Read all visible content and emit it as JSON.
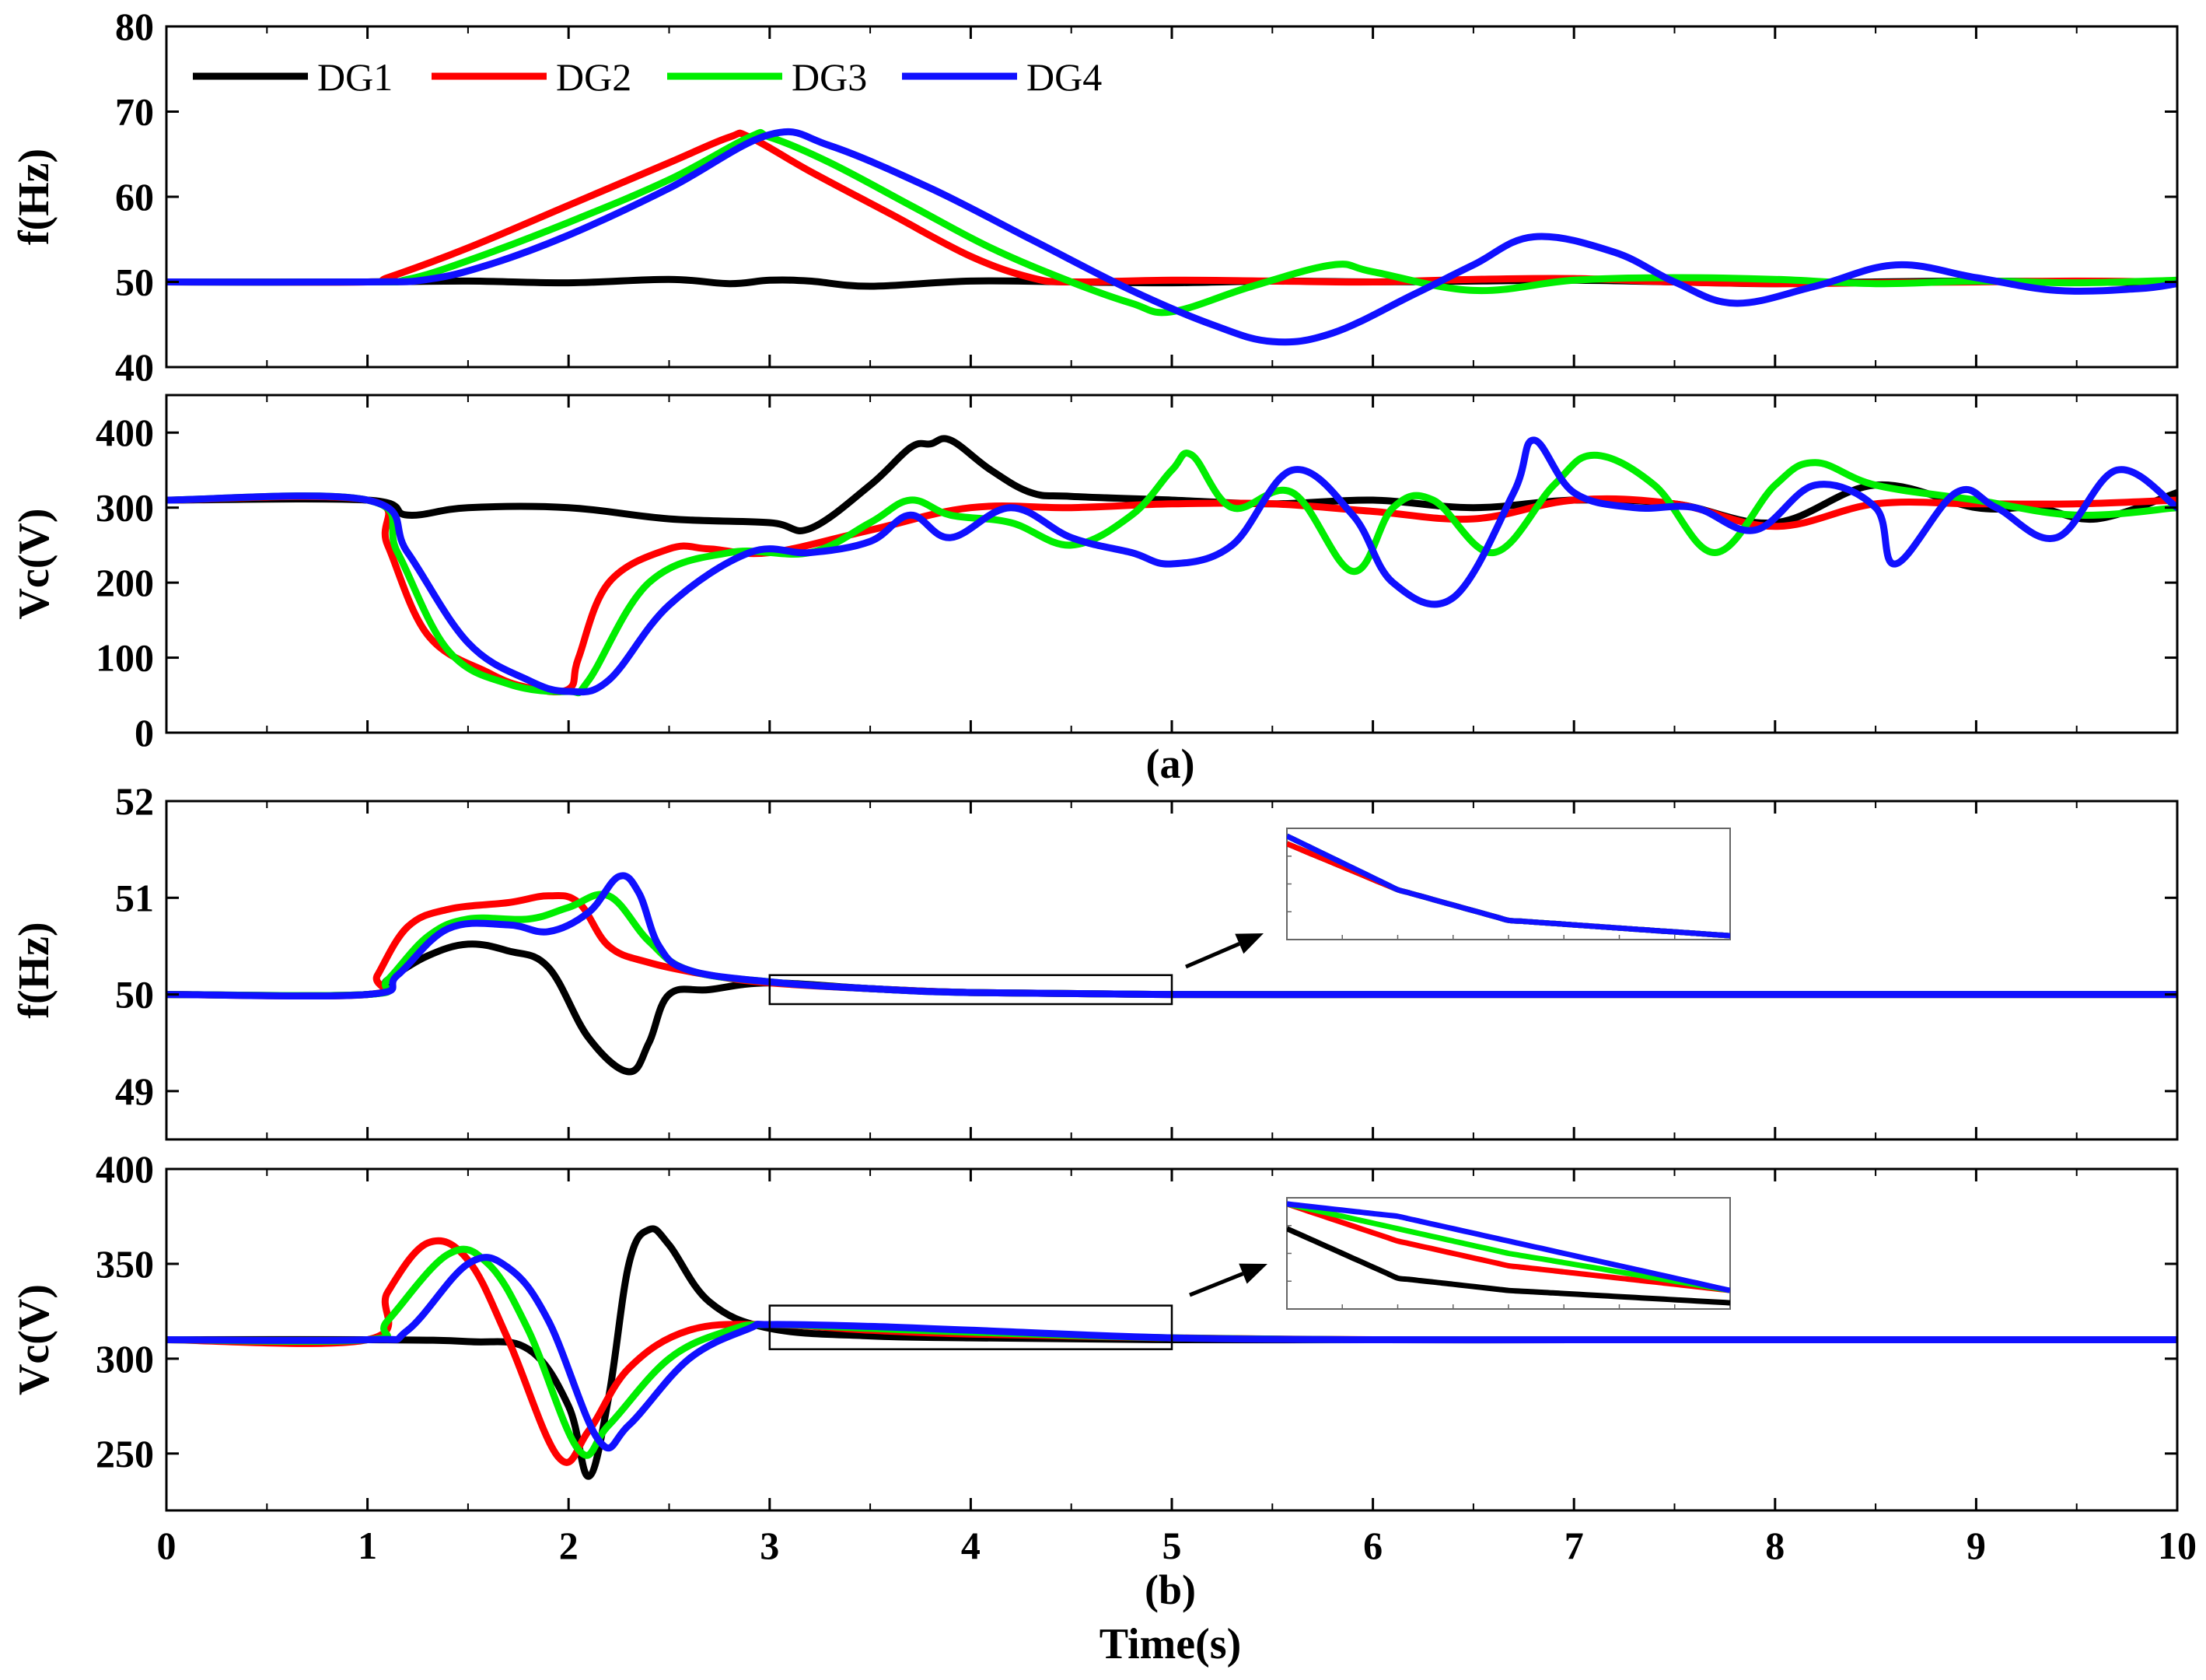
{
  "figure": {
    "xlabel": "Time(s)",
    "caption_a": "(a)",
    "caption_b": "(b)",
    "colors": {
      "DG1": "#000000",
      "DG2": "#ff0000",
      "DG3": "#00ee00",
      "DG4": "#1010ff"
    },
    "legend": [
      "DG1",
      "DG2",
      "DG3",
      "DG4"
    ]
  },
  "chart_data": [
    {
      "id": "a-freq",
      "type": "line",
      "title": "",
      "xlabel": "",
      "ylabel": "f(Hz)",
      "xlim": [
        0,
        10
      ],
      "ylim": [
        40,
        80
      ],
      "yticks": [
        40,
        50,
        60,
        70,
        80
      ],
      "xticks": [
        0,
        1,
        2,
        3,
        4,
        5,
        6,
        7,
        8,
        9,
        10
      ],
      "show_xtick_labels": false,
      "legend_position": "top-left",
      "series": [
        {
          "name": "DG1",
          "x": [
            0,
            1,
            1.5,
            2,
            2.5,
            2.8,
            3,
            3.2,
            3.5,
            4,
            4.5,
            5,
            5.5,
            6,
            6.5,
            7,
            7.5,
            8,
            8.5,
            9,
            9.5,
            10
          ],
          "values": [
            50,
            50,
            50.1,
            49.9,
            50.3,
            49.8,
            50.2,
            50.1,
            49.5,
            50.1,
            50.0,
            49.9,
            50.1,
            50.0,
            50.1,
            50.2,
            50.0,
            49.8,
            50.0,
            50.1,
            50.0,
            49.9
          ]
        },
        {
          "name": "DG2",
          "x": [
            0,
            1,
            1.1,
            1.5,
            2,
            2.5,
            2.8,
            2.9,
            3.2,
            3.6,
            4,
            4.3,
            4.5,
            5,
            5.5,
            6,
            6.5,
            7,
            7.5,
            8,
            8.5,
            9,
            9.5,
            10
          ],
          "values": [
            50,
            50,
            50.5,
            54,
            59,
            64,
            67,
            67,
            63,
            58,
            53,
            50.5,
            50,
            50.2,
            50.1,
            50.0,
            50.3,
            50.4,
            50.0,
            49.8,
            49.9,
            50.0,
            50.1,
            50.0
          ]
        },
        {
          "name": "DG3",
          "x": [
            0,
            1,
            1.2,
            1.5,
            2,
            2.5,
            2.9,
            3.0,
            3.3,
            3.7,
            4.1,
            4.5,
            4.8,
            5.0,
            5.4,
            5.8,
            6.0,
            6.5,
            7,
            7.5,
            8,
            8.5,
            9,
            9.5,
            10
          ],
          "values": [
            50,
            50,
            50.3,
            52.5,
            57,
            62,
            67,
            67,
            64,
            59,
            54,
            50,
            47.5,
            46.5,
            49.5,
            52,
            51.2,
            49,
            50.2,
            50.5,
            50.3,
            49.8,
            50.1,
            49.9,
            50.2
          ]
        },
        {
          "name": "DG4",
          "x": [
            0,
            1,
            1.3,
            1.6,
            2,
            2.5,
            3.0,
            3.3,
            3.8,
            4.3,
            4.8,
            5.2,
            5.5,
            5.8,
            6.2,
            6.5,
            6.8,
            7.2,
            7.5,
            7.8,
            8.2,
            8.6,
            9.0,
            9.4,
            9.8,
            10
          ],
          "values": [
            50,
            50,
            50.3,
            52,
            55.5,
            61,
            67.3,
            66,
            61,
            55,
            49,
            45,
            43,
            44,
            48.5,
            52,
            55.3,
            53.5,
            50,
            47.5,
            49.5,
            52,
            50.5,
            49,
            49.2,
            49.8
          ]
        }
      ]
    },
    {
      "id": "a-volt",
      "type": "line",
      "title": "",
      "xlabel": "",
      "ylabel": "Vc(V)",
      "xlim": [
        0,
        10
      ],
      "ylim": [
        0,
        450
      ],
      "yticks": [
        0,
        100,
        200,
        300,
        400
      ],
      "xticks": [
        0,
        1,
        2,
        3,
        4,
        5,
        6,
        7,
        8,
        9,
        10
      ],
      "show_xtick_labels": false,
      "series": [
        {
          "name": "DG1",
          "x": [
            0,
            1,
            1.2,
            1.5,
            2,
            2.5,
            3,
            3.2,
            3.5,
            3.7,
            3.8,
            3.9,
            4.1,
            4.3,
            4.5,
            5,
            5.5,
            6,
            6.5,
            7,
            7.5,
            8,
            8.5,
            9,
            9.3,
            9.6,
            10
          ],
          "values": [
            310,
            310,
            290,
            300,
            300,
            285,
            280,
            272,
            330,
            380,
            385,
            390,
            350,
            320,
            315,
            310,
            305,
            310,
            300,
            310,
            305,
            280,
            330,
            300,
            300,
            285,
            320
          ]
        },
        {
          "name": "DG2",
          "x": [
            0,
            1,
            1.1,
            1.3,
            1.6,
            1.8,
            2,
            2.05,
            2.2,
            2.5,
            2.7,
            3,
            3.5,
            4,
            4.5,
            5,
            5.5,
            6,
            6.5,
            7,
            7.5,
            8,
            8.5,
            9,
            9.5,
            10
          ],
          "values": [
            310,
            310,
            250,
            130,
            80,
            60,
            58,
            100,
            200,
            245,
            245,
            240,
            270,
            300,
            300,
            305,
            305,
            295,
            285,
            310,
            305,
            275,
            305,
            305,
            305,
            310
          ]
        },
        {
          "name": "DG3",
          "x": [
            0,
            1,
            1.15,
            1.4,
            1.7,
            2.0,
            2.1,
            2.4,
            2.8,
            3.2,
            3.5,
            3.7,
            3.9,
            4.2,
            4.5,
            4.8,
            5.0,
            5.1,
            5.3,
            5.6,
            5.9,
            6.1,
            6.3,
            6.6,
            6.9,
            7.1,
            7.4,
            7.7,
            8.0,
            8.2,
            8.5,
            9.0,
            9.5,
            10
          ],
          "values": [
            310,
            310,
            240,
            110,
            65,
            55,
            70,
            200,
            240,
            240,
            280,
            310,
            290,
            280,
            250,
            290,
            350,
            370,
            300,
            320,
            215,
            300,
            310,
            240,
            330,
            370,
            330,
            240,
            330,
            360,
            330,
            310,
            290,
            300
          ]
        },
        {
          "name": "DG4",
          "x": [
            0,
            1,
            1.2,
            1.5,
            1.8,
            2.0,
            2.2,
            2.5,
            2.9,
            3.2,
            3.5,
            3.7,
            3.9,
            4.2,
            4.5,
            4.8,
            5.0,
            5.3,
            5.6,
            5.9,
            6.1,
            6.4,
            6.7,
            6.8,
            7.0,
            7.3,
            7.6,
            7.9,
            8.2,
            8.5,
            8.6,
            8.9,
            9.1,
            9.4,
            9.7,
            10
          ],
          "values": [
            310,
            310,
            240,
            120,
            70,
            55,
            70,
            170,
            240,
            240,
            255,
            290,
            260,
            300,
            260,
            240,
            225,
            250,
            350,
            290,
            200,
            180,
            320,
            390,
            320,
            300,
            300,
            270,
            330,
            300,
            225,
            320,
            300,
            260,
            350,
            300
          ]
        }
      ]
    },
    {
      "id": "b-freq",
      "type": "line",
      "title": "",
      "xlabel": "",
      "ylabel": "f(Hz)",
      "xlim": [
        0,
        10
      ],
      "ylim": [
        48.5,
        52
      ],
      "yticks": [
        49,
        50,
        51,
        52
      ],
      "xticks": [
        0,
        1,
        2,
        3,
        4,
        5,
        6,
        7,
        8,
        9,
        10
      ],
      "show_xtick_labels": false,
      "zoom_box": {
        "x": [
          3,
          5
        ],
        "y": [
          49.9,
          50.2
        ]
      },
      "series": [
        {
          "name": "DG1",
          "x": [
            0,
            1,
            1.1,
            1.3,
            1.5,
            1.7,
            1.9,
            2.1,
            2.3,
            2.4,
            2.5,
            2.7,
            3,
            3.5,
            4,
            5,
            6,
            7,
            8,
            9,
            10
          ],
          "values": [
            50,
            50,
            50.15,
            50.4,
            50.52,
            50.45,
            50.28,
            49.55,
            49.2,
            49.5,
            50.0,
            50.05,
            50.12,
            50.06,
            50.02,
            50.0,
            50.0,
            50.0,
            50.0,
            50.0,
            50.0
          ]
        },
        {
          "name": "DG2",
          "x": [
            0,
            1,
            1.05,
            1.2,
            1.4,
            1.7,
            1.9,
            2.05,
            2.2,
            2.4,
            2.7,
            3,
            3.5,
            4,
            5,
            6,
            7,
            8,
            9,
            10
          ],
          "values": [
            50,
            50,
            50.2,
            50.7,
            50.88,
            50.95,
            51.02,
            50.95,
            50.5,
            50.33,
            50.2,
            50.12,
            50.06,
            50.02,
            50.0,
            50.0,
            50.0,
            50.0,
            50.0,
            50.0
          ]
        },
        {
          "name": "DG3",
          "x": [
            0,
            1,
            1.1,
            1.3,
            1.5,
            1.8,
            2.0,
            2.2,
            2.4,
            2.6,
            3,
            3.5,
            4,
            5,
            6,
            7,
            8,
            9,
            10
          ],
          "values": [
            50,
            50,
            50.15,
            50.6,
            50.78,
            50.78,
            50.9,
            51.02,
            50.55,
            50.25,
            50.13,
            50.06,
            50.02,
            50.0,
            50.0,
            50.0,
            50.0,
            50.0,
            50.0
          ]
        },
        {
          "name": "DG4",
          "x": [
            0,
            1,
            1.15,
            1.4,
            1.7,
            1.9,
            2.1,
            2.25,
            2.35,
            2.45,
            2.6,
            3,
            3.5,
            4,
            5,
            6,
            7,
            8,
            9,
            10
          ],
          "values": [
            50,
            50,
            50.2,
            50.68,
            50.72,
            50.65,
            50.85,
            51.22,
            51.05,
            50.5,
            50.25,
            50.13,
            50.06,
            50.02,
            50.0,
            50.0,
            50.0,
            50.0,
            50.0,
            50.0
          ]
        }
      ]
    },
    {
      "id": "b-volt",
      "type": "line",
      "title": "",
      "xlabel": "Time(s)",
      "ylabel": "Vc(V)",
      "xlim": [
        0,
        10
      ],
      "ylim": [
        220,
        400
      ],
      "yticks": [
        250,
        300,
        350,
        400
      ],
      "xticks": [
        0,
        1,
        2,
        3,
        4,
        5,
        6,
        7,
        8,
        9,
        10
      ],
      "show_xtick_labels": true,
      "zoom_box": {
        "x": [
          3,
          5
        ],
        "y": [
          305,
          328
        ]
      },
      "series": [
        {
          "name": "DG1",
          "x": [
            0,
            1,
            1.5,
            1.8,
            2.0,
            2.1,
            2.2,
            2.3,
            2.4,
            2.5,
            2.7,
            3,
            3.5,
            4,
            5,
            6,
            7,
            8,
            9,
            10
          ],
          "values": [
            310,
            310,
            309,
            305,
            275,
            238,
            280,
            350,
            368,
            360,
            330,
            316,
            312,
            311,
            310,
            310,
            310,
            310,
            310,
            310
          ]
        },
        {
          "name": "DG2",
          "x": [
            0,
            1,
            1.1,
            1.3,
            1.5,
            1.7,
            1.95,
            2.1,
            2.3,
            2.6,
            3,
            3.5,
            4,
            5,
            6,
            7,
            8,
            9,
            10
          ],
          "values": [
            310,
            310,
            335,
            361,
            352,
            310,
            248,
            262,
            295,
            315,
            318,
            315,
            313,
            311,
            310,
            310,
            310,
            310,
            310
          ]
        },
        {
          "name": "DG3",
          "x": [
            0,
            1,
            1.1,
            1.4,
            1.6,
            1.8,
            2.05,
            2.2,
            2.5,
            2.8,
            3,
            3.5,
            4,
            5,
            6,
            7,
            8,
            9,
            10
          ],
          "values": [
            310,
            310,
            320,
            355,
            350,
            315,
            252,
            265,
            300,
            315,
            318,
            316,
            314,
            311,
            310,
            310,
            310,
            310,
            310
          ]
        },
        {
          "name": "DG4",
          "x": [
            0,
            1,
            1.2,
            1.5,
            1.7,
            1.9,
            2.15,
            2.3,
            2.6,
            2.9,
            3,
            3.5,
            4,
            5,
            6,
            7,
            8,
            9,
            10
          ],
          "values": [
            310,
            310,
            315,
            350,
            348,
            320,
            257,
            265,
            300,
            316,
            318,
            317,
            315,
            311,
            310,
            310,
            310,
            310,
            310
          ]
        }
      ]
    }
  ]
}
